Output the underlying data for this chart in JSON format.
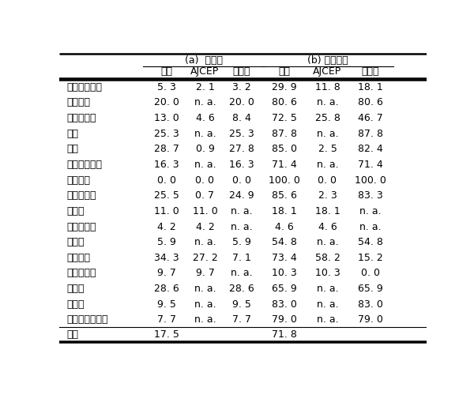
{
  "col_groups": [
    {
      "label": "(a)  全品目",
      "cols": [
        "合計",
        "AJCEP",
        "二国間"
      ]
    },
    {
      "label": "(b) 有税品目",
      "cols": [
        "合計",
        "AJCEP",
        "二国間"
      ]
    }
  ],
  "rows": [
    [
      "シンガポール",
      "5. 3",
      "2. 1",
      "3. 2",
      "29. 9",
      "11. 8",
      "18. 1"
    ],
    [
      "メキシコ",
      "20. 0",
      "n. a.",
      "20. 0",
      "80. 6",
      "n. a.",
      "80. 6"
    ],
    [
      "マレーシア",
      "13. 0",
      "4. 6",
      "8. 4",
      "72. 5",
      "25. 8",
      "46. 7"
    ],
    [
      "チリ",
      "25. 3",
      "n. a.",
      "25. 3",
      "87. 8",
      "n. a.",
      "87. 8"
    ],
    [
      "タイ",
      "28. 7",
      "0. 9",
      "27. 8",
      "85. 0",
      "2. 5",
      "82. 4"
    ],
    [
      "インドネシア",
      "16. 3",
      "n. a.",
      "16. 3",
      "71. 4",
      "n. a.",
      "71. 4"
    ],
    [
      "ブルネイ",
      "0. 0",
      "0. 0",
      "0. 0",
      "100. 0",
      "0. 0",
      "100. 0"
    ],
    [
      "フィリピン",
      "25. 5",
      "0. 7",
      "24. 9",
      "85. 6",
      "2. 3",
      "83. 3"
    ],
    [
      "ラオス",
      "11. 0",
      "11. 0",
      "n. a.",
      "18. 1",
      "18. 1",
      "n. a."
    ],
    [
      "ミャンマー",
      "4. 2",
      "4. 2",
      "n. a.",
      "4. 6",
      "4. 6",
      "n. a."
    ],
    [
      "スイス",
      "5. 9",
      "n. a.",
      "5. 9",
      "54. 8",
      "n. a.",
      "54. 8"
    ],
    [
      "ベトナム",
      "34. 3",
      "27. 2",
      "7. 1",
      "73. 4",
      "58. 2",
      "15. 2"
    ],
    [
      "カンボジア",
      "9. 7",
      "9. 7",
      "n. a.",
      "10. 3",
      "10. 3",
      "0. 0"
    ],
    [
      "インド",
      "28. 6",
      "n. a.",
      "28. 6",
      "65. 9",
      "n. a.",
      "65. 9"
    ],
    [
      "ペルー",
      "9. 5",
      "n. a.",
      "9. 5",
      "83. 0",
      "n. a.",
      "83. 0"
    ],
    [
      "オーストラリア",
      "7. 7",
      "n. a.",
      "7. 7",
      "79. 0",
      "n. a.",
      "79. 0"
    ]
  ],
  "footer_row": [
    "全体",
    "17. 5",
    "",
    "",
    "71. 8",
    "",
    ""
  ],
  "bg_color": "#ffffff",
  "text_color": "#000000",
  "font_size": 9.0,
  "header_font_size": 9.0
}
